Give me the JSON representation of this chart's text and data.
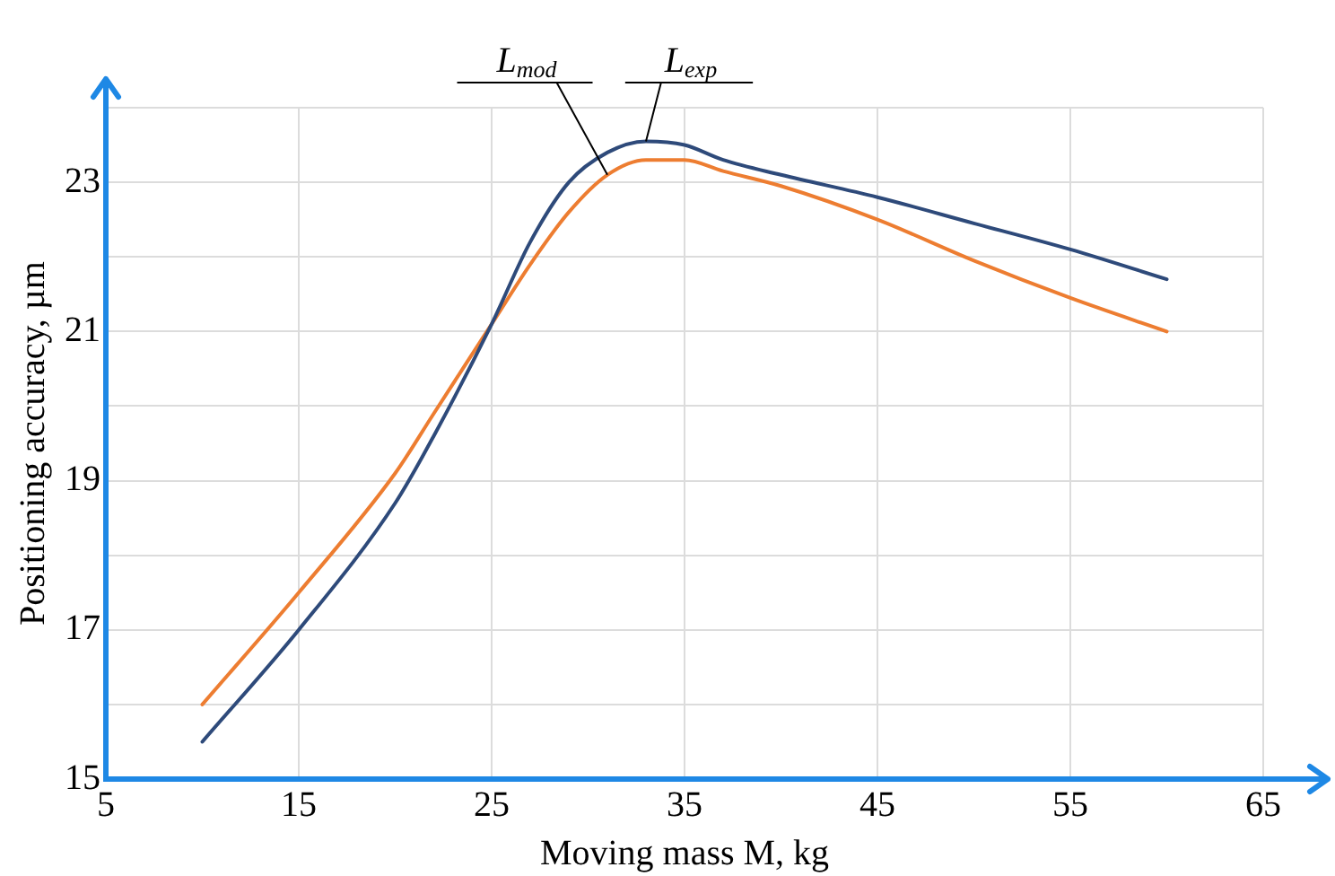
{
  "chart_data": {
    "type": "line",
    "xlabel": "Moving mass M, kg",
    "ylabel": "Positioning accuracy, µm",
    "xlim": [
      5,
      65
    ],
    "xticks": [
      5,
      15,
      25,
      35,
      45,
      55,
      65
    ],
    "ylim": [
      15,
      24
    ],
    "yticks": [
      15,
      {
        "value": 16,
        "label": null
      },
      17,
      {
        "value": 18,
        "label": null
      },
      19,
      {
        "value": 20,
        "label": null
      },
      21,
      {
        "value": 22,
        "label": null
      },
      23,
      {
        "value": 24,
        "label": null
      }
    ],
    "grid": true,
    "legend": false,
    "marker": "none",
    "line_style": "solid",
    "series": [
      {
        "color": "#2e4a7a",
        "x": [
          10,
          15,
          20,
          22,
          25,
          27,
          29,
          31,
          33,
          35,
          37,
          40,
          45,
          50,
          55,
          60
        ],
        "values": [
          15.5,
          17.0,
          18.7,
          19.6,
          21.1,
          22.2,
          23.0,
          23.4,
          23.55,
          23.5,
          23.3,
          23.1,
          22.8,
          22.45,
          22.1,
          21.7
        ]
      },
      {
        "color": "#ed7d31",
        "x": [
          10,
          15,
          20,
          22,
          25,
          27,
          29,
          31,
          33,
          35,
          37,
          40,
          45,
          50,
          55,
          60
        ],
        "values": [
          16.0,
          17.5,
          19.1,
          19.9,
          21.1,
          21.9,
          22.6,
          23.1,
          23.3,
          23.3,
          23.15,
          22.95,
          22.5,
          21.95,
          21.45,
          21.0
        ]
      }
    ],
    "annotations": [
      {
        "text": "L$_{mod}$",
        "x": 31,
        "y": 23.1
      },
      {
        "text": "L$_{exp}$",
        "x": 33,
        "y": 23.55
      }
    ]
  }
}
